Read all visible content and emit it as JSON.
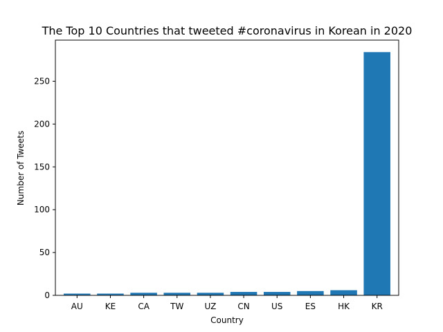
{
  "chart_data": {
    "type": "bar",
    "title": "The Top 10 Countries that tweeted #coronavirus in Korean in 2020",
    "xlabel": "Country",
    "ylabel": "Number of Tweets",
    "categories": [
      "AU",
      "KE",
      "CA",
      "TW",
      "UZ",
      "CN",
      "US",
      "ES",
      "HK",
      "KR"
    ],
    "values": [
      2,
      2,
      3,
      3,
      3,
      4,
      4,
      5,
      6,
      284
    ],
    "ylim": [
      0,
      298
    ],
    "yticks": [
      0,
      50,
      100,
      150,
      200,
      250
    ],
    "grid": false,
    "legend": "none",
    "bar_color": "#1f77b4"
  }
}
